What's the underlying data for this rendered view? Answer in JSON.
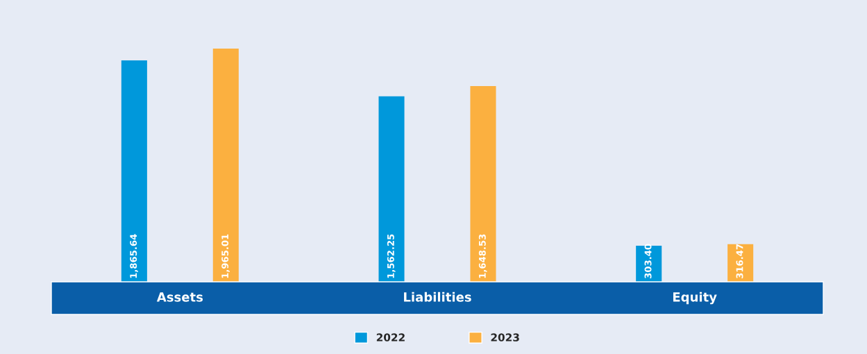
{
  "chart_data": {
    "type": "bar",
    "categories": [
      "Assets",
      "Liabilities",
      "Equity"
    ],
    "series": [
      {
        "name": "2022",
        "color": "#0098db",
        "values": [
          1865.64,
          1562.25,
          303.4
        ],
        "value_labels": [
          "1,865.64",
          "1,562.25",
          "303.40"
        ]
      },
      {
        "name": "2023",
        "color": "#fbb040",
        "values": [
          1965.01,
          1648.53,
          316.47
        ],
        "value_labels": [
          "1,965.01",
          "1,648.53",
          "316.47"
        ]
      }
    ],
    "legend": "bottom"
  }
}
